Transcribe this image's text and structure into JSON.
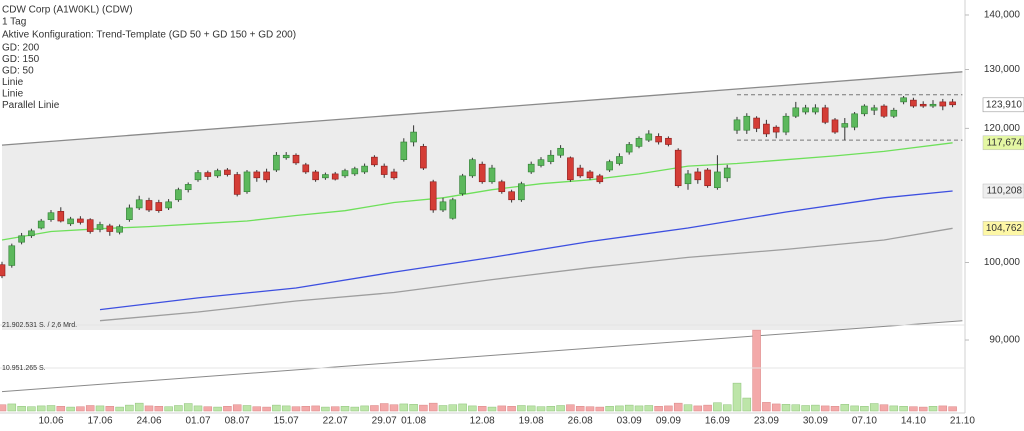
{
  "chart_data": {
    "type": "candlestick",
    "title": "CDW Corp (A1W0KL) (CDW)",
    "subtitle": "1 Tag",
    "annotation": "Aktive Konfiguration: Trend-Template (GD 50 + GD 150 + GD 200)",
    "x": [
      "03.06",
      "04.06",
      "05.06",
      "06.06",
      "07.06",
      "10.06",
      "11.06",
      "12.06",
      "13.06",
      "14.06",
      "17.06",
      "18.06",
      "19.06",
      "20.06",
      "21.06",
      "24.06",
      "25.06",
      "26.06",
      "27.06",
      "28.06",
      "01.07",
      "02.07",
      "03.07",
      "05.07",
      "08.07",
      "09.07",
      "10.07",
      "11.07",
      "12.07",
      "15.07",
      "16.07",
      "17.07",
      "18.07",
      "19.07",
      "22.07",
      "23.07",
      "24.07",
      "25.07",
      "26.07",
      "29.07",
      "30.07",
      "31.07",
      "01.08",
      "02.08",
      "05.08",
      "06.08",
      "07.08",
      "08.08",
      "09.08",
      "12.08",
      "13.08",
      "14.08",
      "15.08",
      "16.08",
      "19.08",
      "20.08",
      "21.08",
      "22.08",
      "23.08",
      "26.08",
      "27.08",
      "28.08",
      "29.08",
      "30.08",
      "03.09",
      "04.09",
      "05.09",
      "06.09",
      "09.09",
      "10.09",
      "11.09",
      "12.09",
      "13.09",
      "16.09",
      "17.09",
      "18.09",
      "19.09",
      "20.09",
      "23.09",
      "24.09",
      "25.09",
      "26.09",
      "27.09",
      "30.09",
      "01.10",
      "02.10",
      "03.10",
      "04.10",
      "07.10",
      "08.10",
      "09.10",
      "10.10",
      "11.10",
      "14.10",
      "15.10",
      "16.10",
      "17.10",
      "18.10",
      "21.10"
    ],
    "open": [
      99700,
      99600,
      102800,
      103700,
      104800,
      106000,
      107200,
      105400,
      106100,
      106000,
      104600,
      105100,
      104200,
      106000,
      107700,
      108800,
      108500,
      107700,
      108900,
      110400,
      111900,
      113000,
      112500,
      113400,
      112700,
      110100,
      113100,
      113100,
      113400,
      115300,
      115700,
      114200,
      113100,
      112200,
      112800,
      112500,
      112800,
      113100,
      115400,
      114000,
      113100,
      115000,
      117800,
      117100,
      111600,
      107400,
      106200,
      109800,
      112500,
      114300,
      111600,
      111600,
      110100,
      108900,
      113100,
      114100,
      114700,
      115700,
      115300,
      113700,
      113100,
      112500,
      113400,
      114400,
      116200,
      117100,
      118100,
      118700,
      118400,
      116500,
      111300,
      113100,
      113400,
      110700,
      112200,
      119700,
      119700,
      121700,
      120700,
      120200,
      119400,
      122000,
      122700,
      122700,
      123400,
      121400,
      120200,
      120200,
      122400,
      123000,
      123700,
      122000,
      124400,
      124700,
      124000,
      123700,
      124400,
      124400,
      null
    ],
    "high": [
      100100,
      102600,
      104100,
      104700,
      106100,
      107400,
      107800,
      106400,
      106500,
      106200,
      105700,
      105400,
      105300,
      108200,
      109500,
      109200,
      108900,
      109000,
      110700,
      111500,
      113400,
      113300,
      113600,
      113700,
      113100,
      113400,
      113400,
      113600,
      116200,
      116200,
      116000,
      114500,
      113400,
      113000,
      113100,
      113600,
      113900,
      114400,
      115700,
      114400,
      113600,
      118400,
      120500,
      117500,
      111900,
      109200,
      109200,
      112800,
      115300,
      114700,
      114200,
      111900,
      110400,
      111600,
      114700,
      115400,
      116500,
      117300,
      115500,
      114200,
      113400,
      112800,
      115000,
      116000,
      117800,
      118700,
      119700,
      119200,
      118700,
      116800,
      113400,
      113700,
      113700,
      115700,
      114200,
      121900,
      122500,
      122000,
      121400,
      120500,
      122500,
      124400,
      123900,
      124000,
      123900,
      121700,
      121700,
      122700,
      124000,
      123900,
      124000,
      123400,
      125400,
      125100,
      124500,
      124700,
      124900,
      124900,
      null
    ],
    "low": [
      97900,
      99300,
      102500,
      103400,
      104600,
      105700,
      105600,
      105100,
      105300,
      104000,
      104200,
      103700,
      103900,
      105700,
      107400,
      107100,
      107000,
      107400,
      108600,
      110000,
      111600,
      111900,
      112200,
      112400,
      109400,
      109800,
      111600,
      111500,
      113100,
      115000,
      114200,
      112800,
      111600,
      111900,
      111800,
      112200,
      112500,
      112800,
      113900,
      112200,
      111900,
      114700,
      117100,
      113400,
      107000,
      107100,
      106000,
      109500,
      112200,
      111300,
      111300,
      109800,
      108500,
      108600,
      112800,
      113800,
      114300,
      115300,
      111600,
      112200,
      111900,
      111300,
      113100,
      114100,
      115800,
      116800,
      117800,
      117400,
      117100,
      110700,
      110400,
      111300,
      110700,
      110400,
      111600,
      119100,
      119100,
      119400,
      118600,
      118400,
      118900,
      121700,
      122300,
      122300,
      120700,
      119100,
      118100,
      119700,
      122000,
      122200,
      121700,
      121700,
      124000,
      123400,
      123400,
      123400,
      123000,
      123500,
      null
    ],
    "close": [
      98200,
      102300,
      103700,
      104400,
      105800,
      107000,
      105800,
      106100,
      105600,
      104300,
      105300,
      104300,
      105000,
      107700,
      108900,
      107400,
      107300,
      108600,
      110400,
      111200,
      113000,
      112400,
      113300,
      112700,
      109700,
      113100,
      112200,
      111900,
      115700,
      115700,
      114500,
      113100,
      111900,
      112700,
      112000,
      113300,
      113600,
      114000,
      114200,
      112700,
      112200,
      117800,
      119400,
      113700,
      107400,
      108600,
      108900,
      112500,
      115000,
      111600,
      113700,
      110100,
      108900,
      111300,
      114300,
      115000,
      115700,
      116800,
      111900,
      112500,
      112200,
      111600,
      114700,
      115500,
      117400,
      118400,
      119100,
      117800,
      117400,
      111000,
      112800,
      111900,
      111000,
      113100,
      113700,
      121400,
      122000,
      120000,
      119100,
      119400,
      122000,
      123400,
      123400,
      123400,
      121000,
      119400,
      120800,
      122400,
      123700,
      123400,
      122000,
      123000,
      125100,
      123700,
      123700,
      124000,
      123700,
      123910,
      null
    ],
    "volume": [
      1600000,
      1800000,
      1200000,
      1100000,
      1300000,
      1400000,
      1200000,
      1000000,
      1100000,
      1400000,
      1300000,
      1200000,
      1000000,
      1500000,
      2000000,
      1300000,
      1200000,
      1100000,
      1400000,
      1900000,
      1300000,
      1100000,
      1000000,
      1200000,
      1600000,
      1400000,
      1100000,
      1000000,
      1500000,
      1300000,
      1100000,
      1200000,
      1300000,
      1000000,
      1100000,
      1200000,
      1000000,
      1300000,
      1400000,
      1900000,
      1600000,
      1800000,
      1700000,
      1500000,
      2000000,
      1400000,
      1600000,
      1800000,
      1300000,
      1200000,
      1000000,
      1300000,
      1200000,
      1400000,
      1300000,
      1100000,
      1200000,
      1400000,
      1600000,
      1200000,
      1100000,
      1000000,
      1200000,
      1300000,
      1500000,
      1300000,
      1400000,
      1200000,
      1300000,
      2000000,
      1600000,
      1300000,
      1500000,
      2100000,
      1600000,
      7100000,
      3300000,
      20600000,
      2200000,
      1800000,
      1700000,
      1600000,
      1400000,
      1500000,
      1300000,
      1200000,
      1700000,
      1300000,
      1200000,
      1900000,
      1600000,
      1300000,
      1200000,
      1100000,
      1000000,
      1200000,
      1300000,
      1100000,
      null
    ],
    "last_close_label": "123,910",
    "last_close_label_color": "#ffffff",
    "up_color": "#5cb85c",
    "down_color": "#d43d36",
    "volume_up_color": "#bde5a9",
    "volume_down_color": "#f3a9a9",
    "log_scale": true,
    "ylim": [
      81500,
      142880
    ],
    "yticks": [
      {
        "value": 90000,
        "label": "90,000"
      },
      {
        "value": 100000,
        "label": "100,000"
      },
      {
        "value": 120000,
        "label": "120,000"
      },
      {
        "value": 130000,
        "label": "130,000"
      },
      {
        "value": 140000,
        "label": "140,000"
      }
    ],
    "volume_ylim": [
      0,
      21902531
    ],
    "volume_ticks": [
      {
        "value": 21902531,
        "label": "21.902.531 S. / 2,6 Mrd."
      },
      {
        "value": 10951265,
        "label": "10.951.265 S."
      }
    ],
    "xticks": [
      "10.06",
      "17.06",
      "24.06",
      "01.07",
      "08.07",
      "15.07",
      "22.07",
      "29.07",
      "01.08",
      "12.08",
      "19.08",
      "26.08",
      "03.09",
      "09.09",
      "16.09",
      "23.09",
      "30.09",
      "07.10",
      "14.10",
      "21.10"
    ],
    "grid": false,
    "channel_fill": "#ececec",
    "series": [
      {
        "name": "GD: 200",
        "color": "#9e9e9e",
        "text_color": "#555555",
        "x": [
          "17.06",
          "01.07",
          "16.07",
          "30.07",
          "13.08",
          "27.08",
          "11.09",
          "25.09",
          "09.10",
          "18.10"
        ],
        "values": [
          92400,
          93500,
          94900,
          96000,
          97700,
          99300,
          100700,
          101800,
          103100,
          104762
        ],
        "last_label": "104,762",
        "label_color": "#fdf7a6"
      },
      {
        "name": "GD: 150",
        "color": "#3d4fe0",
        "text_color": "#2233cc",
        "x": [
          "17.06",
          "01.07",
          "16.07",
          "30.07",
          "13.08",
          "27.08",
          "11.09",
          "25.09",
          "09.10",
          "18.10"
        ],
        "values": [
          93800,
          95300,
          96600,
          98700,
          100700,
          102900,
          104800,
          107100,
          109200,
          110208
        ],
        "last_label": "110,208",
        "label_color": "#eeeeee"
      },
      {
        "name": "GD: 50",
        "color": "#6ee05a",
        "text_color": "#3cc82a",
        "x": [
          "03.06",
          "10.06",
          "17.06",
          "24.06",
          "01.07",
          "09.07",
          "16.07",
          "23.07",
          "30.07",
          "06.08",
          "13.08",
          "20.08",
          "27.08",
          "04.09",
          "11.09",
          "18.09",
          "25.09",
          "02.10",
          "09.10",
          "18.10"
        ],
        "values": [
          103100,
          104300,
          104700,
          105000,
          105400,
          105800,
          106600,
          107300,
          108500,
          109200,
          110400,
          111300,
          111900,
          112800,
          114000,
          114400,
          115000,
          115600,
          116300,
          117674
        ],
        "last_label": "117,674",
        "label_color": "#e4f7a3"
      },
      {
        "name": "Linie",
        "color": "#777777",
        "text_color": "#666666",
        "dashed": true,
        "x": [
          "18.09",
          "21.10"
        ],
        "values": [
          125600,
          125600
        ]
      },
      {
        "name": "Linie",
        "color": "#777777",
        "text_color": "#666666",
        "dashed": true,
        "x": [
          "18.09",
          "21.10"
        ],
        "values": [
          118100,
          118100
        ]
      },
      {
        "name": "Parallel Linie",
        "color": "#8a8a8a",
        "text_color": "#666666",
        "x": [
          "03.06",
          "21.10"
        ],
        "values": [
          117300,
          129600
        ],
        "parallel_values": [
          83900,
          92400
        ]
      }
    ]
  }
}
